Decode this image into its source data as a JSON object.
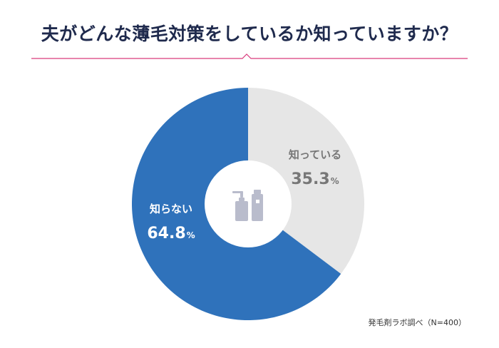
{
  "title": "夫がどんな薄毛対策をしているか知っていますか？",
  "source": "発毛剤ラボ調べ（N=400）",
  "colors": {
    "accent_line": "#d93a7c",
    "known": "#e6e6e6",
    "unknown": "#2f72bb",
    "center_icon": "#b9bccc",
    "title": "#1f2a4d"
  },
  "chart_data": {
    "type": "pie",
    "donut": true,
    "labels": [
      "知っている",
      "知らない"
    ],
    "values": [
      35.3,
      64.8
    ],
    "value_suffix": "%",
    "colors": [
      "#e6e6e6",
      "#2f72bb"
    ],
    "label_colors": [
      "#777777",
      "#ffffff"
    ],
    "center_icon": "bottles-icon"
  }
}
